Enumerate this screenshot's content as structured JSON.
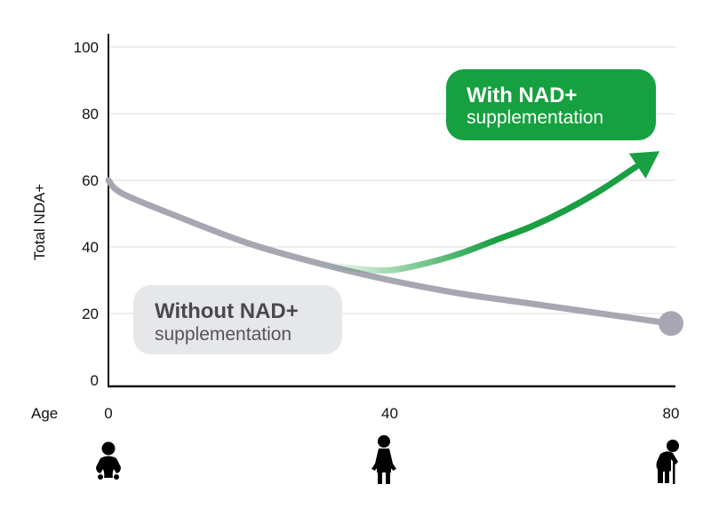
{
  "chart_data": {
    "type": "line",
    "ylabel": "Total NDA+",
    "xlabel": "Age",
    "yticks": [
      "100",
      "80",
      "60",
      "40",
      "20",
      "0"
    ],
    "xticks": [
      "0",
      "40",
      "80"
    ],
    "ylim": [
      0,
      100
    ],
    "xlim": [
      0,
      80
    ],
    "grid": true,
    "series": [
      {
        "name": "Without NAD+ supplementation",
        "color": "#a9a6b3",
        "x": [
          0,
          2,
          10,
          20,
          30,
          40,
          50,
          60,
          70,
          80
        ],
        "y": [
          60,
          56,
          49,
          41,
          35,
          30,
          26,
          23,
          20,
          17
        ]
      },
      {
        "name": "With NAD+ supplementation",
        "color": "#1aa043",
        "x": [
          30,
          35,
          40,
          45,
          50,
          55,
          60,
          65,
          70,
          75
        ],
        "y": [
          35,
          33.5,
          33,
          35,
          38,
          42,
          46,
          51,
          57,
          64
        ]
      }
    ]
  },
  "labels": {
    "without_title": "Without NAD+",
    "without_sub": "supplementation",
    "with_title": "With NAD+",
    "with_sub": "supplementation"
  },
  "icons": [
    "baby-icon",
    "adult-icon",
    "elderly-icon"
  ],
  "colors": {
    "gray_line": "#a9a6b3",
    "green": "#1aa043",
    "gray_badge": "#e6e7e9"
  }
}
